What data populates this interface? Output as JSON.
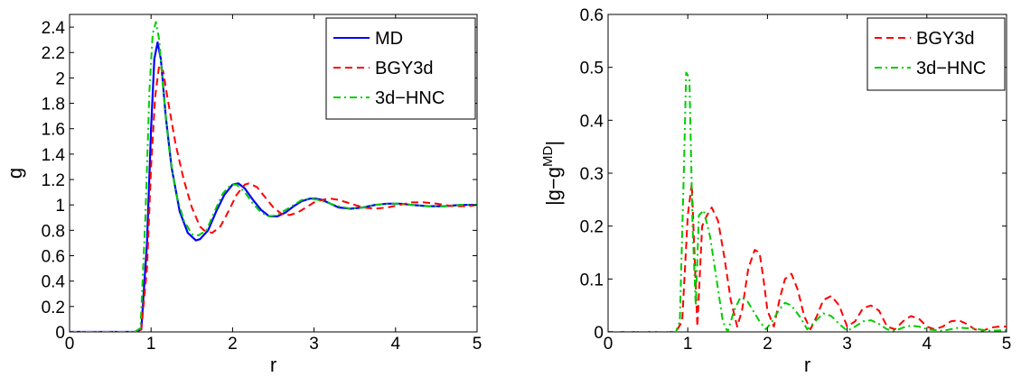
{
  "chart_data": [
    {
      "type": "line",
      "xlabel": "r",
      "ylabel": "g",
      "xlim": [
        0,
        5
      ],
      "ylim": [
        0,
        2.5
      ],
      "xticks": [
        0,
        1,
        2,
        3,
        4,
        5
      ],
      "yticks": [
        0,
        0.2,
        0.4,
        0.6,
        0.8,
        1,
        1.2,
        1.4,
        1.6,
        1.8,
        2,
        2.2,
        2.4
      ],
      "legend_position": "top-right",
      "grid": false,
      "series": [
        {
          "name": "MD",
          "color": "#0000ff",
          "style": "solid",
          "x": [
            0,
            0.8,
            0.88,
            0.95,
            1.0,
            1.04,
            1.08,
            1.12,
            1.18,
            1.25,
            1.35,
            1.45,
            1.55,
            1.6,
            1.7,
            1.8,
            1.9,
            2.0,
            2.07,
            2.15,
            2.25,
            2.35,
            2.45,
            2.55,
            2.65,
            2.75,
            2.85,
            2.95,
            3.02,
            3.1,
            3.2,
            3.3,
            3.45,
            3.6,
            3.75,
            3.9,
            4.05,
            4.2,
            4.4,
            4.6,
            4.8,
            5.0
          ],
          "y": [
            0,
            0,
            0.02,
            0.7,
            1.6,
            2.15,
            2.28,
            2.15,
            1.7,
            1.3,
            0.95,
            0.78,
            0.72,
            0.73,
            0.8,
            0.95,
            1.08,
            1.16,
            1.17,
            1.13,
            1.04,
            0.96,
            0.91,
            0.91,
            0.94,
            0.99,
            1.03,
            1.05,
            1.05,
            1.04,
            1.01,
            0.98,
            0.97,
            0.98,
            1.0,
            1.01,
            1.01,
            1.0,
            0.99,
            0.99,
            1.0,
            1.0
          ]
        },
        {
          "name": "BGY3d",
          "color": "#ff0000",
          "style": "dashed",
          "x": [
            0,
            0.8,
            0.88,
            0.95,
            1.0,
            1.05,
            1.1,
            1.15,
            1.2,
            1.3,
            1.4,
            1.5,
            1.6,
            1.65,
            1.75,
            1.85,
            1.95,
            2.05,
            2.15,
            2.2,
            2.3,
            2.4,
            2.5,
            2.6,
            2.7,
            2.8,
            2.9,
            3.0,
            3.1,
            3.2,
            3.3,
            3.45,
            3.6,
            3.75,
            3.9,
            4.05,
            4.2,
            4.35,
            4.5,
            4.7,
            4.9,
            5.0
          ],
          "y": [
            0,
            0,
            0.02,
            0.5,
            1.3,
            1.85,
            2.1,
            2.05,
            1.85,
            1.48,
            1.2,
            0.98,
            0.83,
            0.8,
            0.78,
            0.83,
            0.95,
            1.08,
            1.16,
            1.17,
            1.14,
            1.06,
            0.98,
            0.93,
            0.92,
            0.94,
            0.98,
            1.02,
            1.04,
            1.05,
            1.04,
            1.01,
            0.98,
            0.97,
            0.98,
            1.0,
            1.02,
            1.02,
            1.01,
            0.99,
            0.99,
            1.0
          ]
        },
        {
          "name": "3d−HNC",
          "color": "#00cc00",
          "style": "dashdot",
          "x": [
            0,
            0.8,
            0.87,
            0.93,
            0.98,
            1.02,
            1.06,
            1.1,
            1.15,
            1.22,
            1.3,
            1.4,
            1.5,
            1.58,
            1.68,
            1.78,
            1.88,
            1.98,
            2.05,
            2.15,
            2.25,
            2.35,
            2.45,
            2.55,
            2.65,
            2.75,
            2.85,
            2.95,
            3.05,
            3.15,
            3.3,
            3.45,
            3.6,
            3.75,
            3.9,
            4.05,
            4.2,
            4.4,
            4.6,
            4.8,
            5.0
          ],
          "y": [
            0,
            0,
            0.03,
            0.9,
            1.9,
            2.35,
            2.44,
            2.3,
            1.9,
            1.45,
            1.1,
            0.88,
            0.77,
            0.76,
            0.8,
            0.95,
            1.09,
            1.16,
            1.16,
            1.1,
            1.01,
            0.94,
            0.91,
            0.92,
            0.96,
            1.0,
            1.04,
            1.05,
            1.04,
            1.02,
            0.99,
            0.97,
            0.98,
            1.0,
            1.01,
            1.01,
            1.0,
            0.99,
            0.99,
            1.0,
            1.0
          ]
        }
      ]
    },
    {
      "type": "line",
      "xlabel": "r",
      "ylabel": "|g−g",
      "ylabel_superscript": "MD",
      "ylabel_suffix": "|",
      "xlim": [
        0,
        5
      ],
      "ylim": [
        0,
        0.6
      ],
      "xticks": [
        0,
        1,
        2,
        3,
        4,
        5
      ],
      "yticks": [
        0,
        0.1,
        0.2,
        0.3,
        0.4,
        0.5,
        0.6
      ],
      "legend_position": "top-right",
      "grid": false,
      "series": [
        {
          "name": "BGY3d",
          "color": "#ff0000",
          "style": "dashed",
          "x": [
            0,
            0.85,
            0.93,
            1.0,
            1.05,
            1.12,
            1.18,
            1.24,
            1.3,
            1.38,
            1.46,
            1.54,
            1.62,
            1.68,
            1.76,
            1.84,
            1.9,
            1.95,
            2.0,
            2.08,
            2.15,
            2.22,
            2.3,
            2.38,
            2.46,
            2.54,
            2.62,
            2.7,
            2.8,
            2.9,
            3.0,
            3.1,
            3.2,
            3.3,
            3.4,
            3.5,
            3.6,
            3.7,
            3.8,
            3.9,
            4.0,
            4.1,
            4.2,
            4.3,
            4.4,
            4.5,
            4.6,
            4.7,
            4.8,
            4.9,
            5.0
          ],
          "y": [
            0,
            0,
            0.02,
            0.22,
            0.28,
            0.01,
            0.2,
            0.22,
            0.235,
            0.21,
            0.14,
            0.06,
            0.01,
            0.04,
            0.12,
            0.155,
            0.15,
            0.1,
            0.04,
            0.01,
            0.06,
            0.1,
            0.11,
            0.08,
            0.03,
            0.005,
            0.03,
            0.06,
            0.068,
            0.05,
            0.01,
            0.02,
            0.045,
            0.05,
            0.04,
            0.01,
            0.005,
            0.02,
            0.03,
            0.025,
            0.01,
            0.005,
            0.01,
            0.02,
            0.022,
            0.015,
            0.005,
            0.002,
            0.008,
            0.01,
            0.01
          ]
        },
        {
          "name": "3d−HNC",
          "color": "#00cc00",
          "style": "dashdot",
          "x": [
            0,
            0.85,
            0.9,
            0.95,
            0.98,
            1.02,
            1.06,
            1.1,
            1.14,
            1.2,
            1.28,
            1.36,
            1.44,
            1.5,
            1.58,
            1.66,
            1.74,
            1.82,
            1.9,
            1.98,
            2.06,
            2.14,
            2.22,
            2.3,
            2.4,
            2.5,
            2.6,
            2.7,
            2.8,
            2.9,
            3.0,
            3.1,
            3.2,
            3.3,
            3.4,
            3.5,
            3.6,
            3.7,
            3.8,
            3.9,
            4.0,
            4.2,
            4.4,
            4.6,
            4.8,
            5.0
          ],
          "y": [
            0,
            0,
            0.02,
            0.3,
            0.49,
            0.48,
            0.2,
            0.05,
            0.22,
            0.23,
            0.18,
            0.1,
            0.02,
            0.0,
            0.04,
            0.065,
            0.06,
            0.04,
            0.02,
            0.005,
            0.02,
            0.04,
            0.055,
            0.05,
            0.03,
            0.005,
            0.02,
            0.035,
            0.03,
            0.015,
            0.002,
            0.01,
            0.02,
            0.022,
            0.015,
            0.005,
            0.002,
            0.008,
            0.012,
            0.01,
            0.005,
            0.002,
            0.008,
            0.006,
            0.002,
            0.003
          ]
        }
      ]
    }
  ]
}
